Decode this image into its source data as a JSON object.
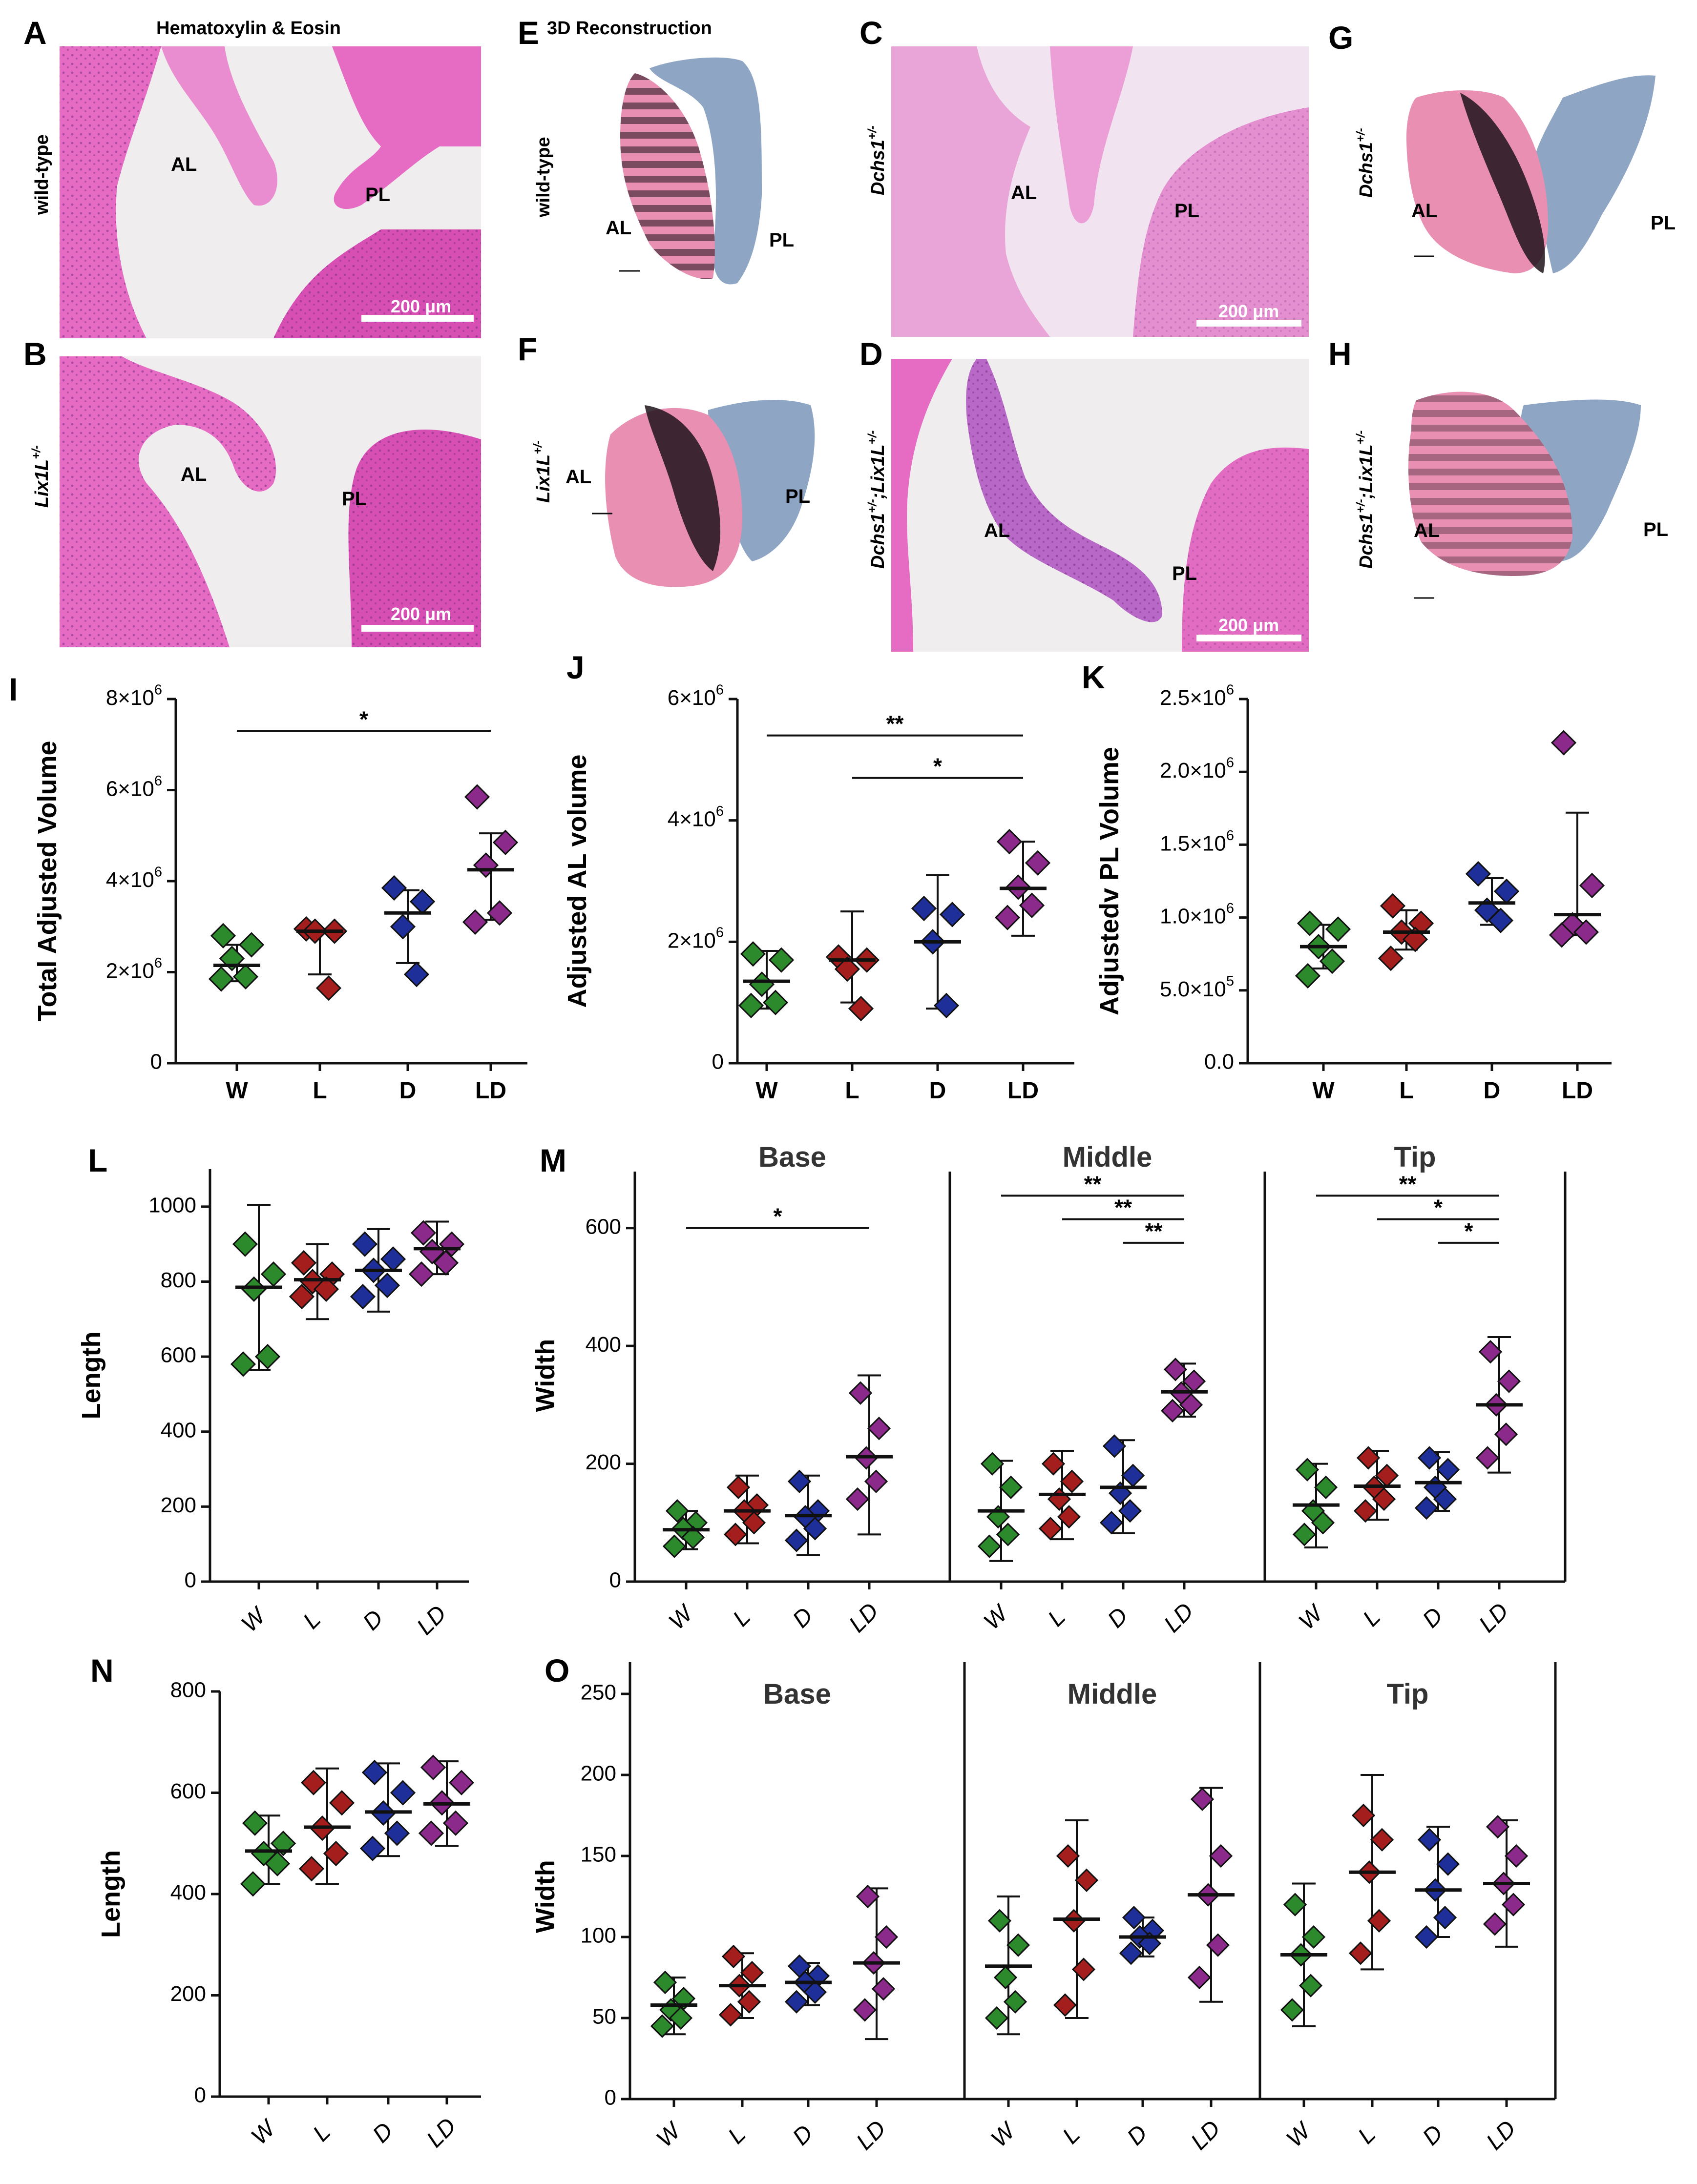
{
  "figure": {
    "panel_letters": [
      "A",
      "B",
      "C",
      "D",
      "E",
      "F",
      "G",
      "H",
      "I",
      "J",
      "K",
      "L",
      "M",
      "N",
      "O"
    ],
    "column_headers": {
      "he": "Hematoxylin & Eosin",
      "recon": "3D Reconstruction"
    },
    "genotype_labels": {
      "wt": "wild-type",
      "lix_base": "Lix1L",
      "lix_sup": "+/-",
      "dchs_base": "Dchs1",
      "dchs_sup": "+/-",
      "dl_base1": "Dchs1",
      "dl_sup1": "+/-",
      "dl_sep": ";",
      "dl_base2": "Lix1L",
      "dl_sup2": "+/-"
    },
    "leaflet_labels": {
      "anterior": "AL",
      "posterior": "PL"
    },
    "scale_bar_label": "200 μm",
    "histology_colors": {
      "background": "#efedee",
      "tissue": "#e56bc3",
      "tissue_dark": "#c43d9e",
      "nuclei": "#7a2f86"
    },
    "recon_colors": {
      "anterior": "#e88fb2",
      "anterior_shadow": "#2a1820",
      "posterior": "#8fa5c4"
    }
  },
  "chart_data": [
    {
      "panel": "I",
      "type": "scatter",
      "categories": [
        "W",
        "L",
        "D",
        "LD"
      ],
      "ylabel": "Total Adjusted Volume",
      "yticks": [
        0,
        2000000,
        4000000,
        6000000,
        8000000
      ],
      "ytick_labels": [
        "0",
        "2×10^6",
        "4×10^6",
        "6×10^6",
        "8×10^6"
      ],
      "ylim": [
        0,
        8000000
      ],
      "series": [
        {
          "name": "W",
          "color": "#2c8a2c",
          "points": [
            2800000,
            2600000,
            2300000,
            1900000,
            1850000
          ],
          "mean": 2150000,
          "err": [
            1800000,
            2600000
          ]
        },
        {
          "name": "L",
          "color": "#a51e1e",
          "points": [
            2950000,
            2900000,
            2900000,
            1650000
          ],
          "mean": 2900000,
          "err": [
            1950000,
            2950000
          ]
        },
        {
          "name": "D",
          "color": "#1f2f9a",
          "points": [
            3850000,
            3550000,
            3000000,
            1950000
          ],
          "mean": 3300000,
          "err": [
            2200000,
            3800000
          ]
        },
        {
          "name": "LD",
          "color": "#8b2a8b",
          "points": [
            5850000,
            4850000,
            4350000,
            3300000,
            3100000
          ],
          "mean": 4250000,
          "err": [
            3150000,
            5050000
          ]
        }
      ],
      "significance": [
        {
          "from": "W",
          "to": "LD",
          "label": "*",
          "level": 7300000
        }
      ]
    },
    {
      "panel": "J",
      "type": "scatter",
      "categories": [
        "W",
        "L",
        "D",
        "LD"
      ],
      "ylabel": "Adjusted AL volume",
      "yticks": [
        0,
        2000000,
        4000000,
        6000000
      ],
      "ytick_labels": [
        "0",
        "2×10^6",
        "4×10^6",
        "6×10^6"
      ],
      "ylim": [
        0,
        6000000
      ],
      "series": [
        {
          "name": "W",
          "color": "#2c8a2c",
          "points": [
            1800000,
            1700000,
            1300000,
            1000000,
            950000
          ],
          "mean": 1350000,
          "err": [
            900000,
            1850000
          ]
        },
        {
          "name": "L",
          "color": "#a51e1e",
          "points": [
            1750000,
            1700000,
            1550000,
            900000
          ],
          "mean": 1700000,
          "err": [
            1000000,
            2500000
          ]
        },
        {
          "name": "D",
          "color": "#1f2f9a",
          "points": [
            2550000,
            2450000,
            2000000,
            950000
          ],
          "mean": 2000000,
          "err": [
            900000,
            3100000
          ]
        },
        {
          "name": "LD",
          "color": "#8b2a8b",
          "points": [
            3650000,
            3300000,
            2900000,
            2600000,
            2400000
          ],
          "mean": 2880000,
          "err": [
            2100000,
            3650000
          ]
        }
      ],
      "significance": [
        {
          "from": "W",
          "to": "LD",
          "label": "**",
          "level": 5400000
        },
        {
          "from": "L",
          "to": "LD",
          "label": "*",
          "level": 4700000
        }
      ]
    },
    {
      "panel": "K",
      "type": "scatter",
      "categories": [
        "W",
        "L",
        "D",
        "LD"
      ],
      "ylabel": "Adjustedv PL Volume",
      "yticks": [
        0,
        500000,
        1000000,
        1500000,
        2000000,
        2500000
      ],
      "ytick_labels": [
        "0.0",
        "5.0×10^5",
        "1.0×10^6",
        "1.5×10^6",
        "2.0×10^6",
        "2.5×10^6"
      ],
      "ylim": [
        0,
        2500000
      ],
      "series": [
        {
          "name": "W",
          "color": "#2c8a2c",
          "points": [
            960000,
            920000,
            800000,
            700000,
            600000
          ],
          "mean": 800000,
          "err": [
            650000,
            950000
          ]
        },
        {
          "name": "L",
          "color": "#a51e1e",
          "points": [
            1080000,
            960000,
            900000,
            850000,
            720000
          ],
          "mean": 900000,
          "err": [
            780000,
            1050000
          ]
        },
        {
          "name": "D",
          "color": "#1f2f9a",
          "points": [
            1300000,
            1180000,
            1050000,
            980000
          ],
          "mean": 1100000,
          "err": [
            950000,
            1270000
          ]
        },
        {
          "name": "LD",
          "color": "#8b2a8b",
          "points": [
            2200000,
            1220000,
            950000,
            900000,
            880000
          ],
          "mean": 1020000,
          "err": [
            880000,
            1720000
          ]
        }
      ],
      "significance": []
    },
    {
      "panel": "L",
      "type": "scatter",
      "categories": [
        "W",
        "L",
        "D",
        "LD"
      ],
      "ylabel": "Length",
      "yticks": [
        0,
        200,
        400,
        600,
        800,
        1000
      ],
      "ylim": [
        0,
        1100
      ],
      "series": [
        {
          "name": "W",
          "color": "#2c8a2c",
          "points": [
            900,
            820,
            780,
            600,
            580
          ],
          "mean": 785,
          "err": [
            565,
            1005
          ]
        },
        {
          "name": "L",
          "color": "#a51e1e",
          "points": [
            850,
            820,
            800,
            780,
            760
          ],
          "mean": 805,
          "err": [
            700,
            900
          ]
        },
        {
          "name": "D",
          "color": "#1f2f9a",
          "points": [
            900,
            860,
            830,
            790,
            760
          ],
          "mean": 830,
          "err": [
            720,
            940
          ]
        },
        {
          "name": "LD",
          "color": "#8b2a8b",
          "points": [
            930,
            900,
            880,
            850,
            820
          ],
          "mean": 888,
          "err": [
            820,
            960
          ]
        }
      ],
      "significance": []
    },
    {
      "panel": "M",
      "type": "scatter",
      "facets": [
        "Base",
        "Middle",
        "Tip"
      ],
      "categories": [
        "W",
        "L",
        "D",
        "LD"
      ],
      "ylabel": "Width",
      "yticks": [
        0,
        200,
        400,
        600
      ],
      "ylim": [
        0,
        700
      ],
      "facet_series": [
        [
          {
            "name": "W",
            "color": "#2c8a2c",
            "mean": 88,
            "err": [
              55,
              120
            ],
            "points": [
              120,
              100,
              90,
              75,
              60
            ]
          },
          {
            "name": "L",
            "color": "#a51e1e",
            "mean": 120,
            "err": [
              65,
              180
            ],
            "points": [
              160,
              130,
              120,
              100,
              80
            ]
          },
          {
            "name": "D",
            "color": "#1f2f9a",
            "mean": 112,
            "err": [
              45,
              180
            ],
            "points": [
              170,
              120,
              110,
              90,
              70
            ]
          },
          {
            "name": "LD",
            "color": "#8b2a8b",
            "mean": 212,
            "err": [
              80,
              350
            ],
            "points": [
              320,
              260,
              210,
              170,
              140
            ]
          }
        ],
        [
          {
            "name": "W",
            "color": "#2c8a2c",
            "mean": 120,
            "err": [
              35,
              205
            ],
            "points": [
              200,
              160,
              110,
              80,
              60
            ]
          },
          {
            "name": "L",
            "color": "#a51e1e",
            "mean": 148,
            "err": [
              72,
              222
            ],
            "points": [
              200,
              170,
              140,
              110,
              90
            ]
          },
          {
            "name": "D",
            "color": "#1f2f9a",
            "mean": 160,
            "err": [
              82,
              240
            ],
            "points": [
              230,
              180,
              150,
              120,
              100
            ]
          },
          {
            "name": "LD",
            "color": "#8b2a8b",
            "mean": 322,
            "err": [
              280,
              370
            ],
            "points": [
              360,
              340,
              320,
              300,
              290
            ]
          }
        ],
        [
          {
            "name": "W",
            "color": "#2c8a2c",
            "mean": 130,
            "err": [
              58,
              200
            ],
            "points": [
              190,
              160,
              120,
              100,
              80
            ]
          },
          {
            "name": "L",
            "color": "#a51e1e",
            "mean": 162,
            "err": [
              105,
              222
            ],
            "points": [
              210,
              180,
              160,
              140,
              120
            ]
          },
          {
            "name": "D",
            "color": "#1f2f9a",
            "mean": 168,
            "err": [
              120,
              220
            ],
            "points": [
              210,
              190,
              160,
              140,
              125
            ]
          },
          {
            "name": "LD",
            "color": "#8b2a8b",
            "mean": 300,
            "err": [
              185,
              415
            ],
            "points": [
              390,
              340,
              300,
              250,
              210
            ]
          }
        ]
      ],
      "significance": [
        [
          {
            "from": "W",
            "to": "LD",
            "label": "*",
            "level": 600
          }
        ],
        [
          {
            "from": "W",
            "to": "LD",
            "label": "**",
            "level": 655
          },
          {
            "from": "L",
            "to": "LD",
            "label": "**",
            "level": 615
          },
          {
            "from": "D",
            "to": "LD",
            "label": "**",
            "level": 575
          }
        ],
        [
          {
            "from": "W",
            "to": "LD",
            "label": "**",
            "level": 655
          },
          {
            "from": "L",
            "to": "LD",
            "label": "*",
            "level": 615
          },
          {
            "from": "D",
            "to": "LD",
            "label": "*",
            "level": 575
          }
        ]
      ]
    },
    {
      "panel": "N",
      "type": "scatter",
      "categories": [
        "W",
        "L",
        "D",
        "LD"
      ],
      "ylabel": "Length",
      "yticks": [
        0,
        200,
        400,
        600,
        800
      ],
      "ylim": [
        0,
        800
      ],
      "series": [
        {
          "name": "W",
          "color": "#2c8a2c",
          "points": [
            540,
            500,
            480,
            460,
            420
          ],
          "mean": 485,
          "err": [
            420,
            555
          ]
        },
        {
          "name": "L",
          "color": "#a51e1e",
          "points": [
            620,
            580,
            530,
            480,
            450
          ],
          "mean": 532,
          "err": [
            420,
            648
          ]
        },
        {
          "name": "D",
          "color": "#1f2f9a",
          "points": [
            640,
            600,
            560,
            520,
            490
          ],
          "mean": 562,
          "err": [
            475,
            658
          ]
        },
        {
          "name": "LD",
          "color": "#8b2a8b",
          "points": [
            650,
            620,
            580,
            540,
            520
          ],
          "mean": 578,
          "err": [
            495,
            662
          ]
        }
      ],
      "significance": []
    },
    {
      "panel": "O",
      "type": "scatter",
      "facets": [
        "Base",
        "Middle",
        "Tip"
      ],
      "categories": [
        "W",
        "L",
        "D",
        "LD"
      ],
      "ylabel": "Width",
      "yticks": [
        0,
        50,
        100,
        150,
        200,
        250
      ],
      "ylim": [
        0,
        250
      ],
      "facet_series": [
        [
          {
            "name": "W",
            "color": "#2c8a2c",
            "mean": 58,
            "err": [
              40,
              75
            ],
            "points": [
              72,
              62,
              55,
              50,
              45
            ]
          },
          {
            "name": "L",
            "color": "#a51e1e",
            "mean": 70,
            "err": [
              50,
              90
            ],
            "points": [
              88,
              78,
              70,
              60,
              52
            ]
          },
          {
            "name": "D",
            "color": "#1f2f9a",
            "mean": 72,
            "err": [
              58,
              84
            ],
            "points": [
              82,
              76,
              72,
              66,
              60
            ]
          },
          {
            "name": "LD",
            "color": "#8b2a8b",
            "mean": 84,
            "err": [
              37,
              130
            ],
            "points": [
              125,
              100,
              84,
              68,
              55
            ]
          }
        ],
        [
          {
            "name": "W",
            "color": "#2c8a2c",
            "mean": 82,
            "err": [
              40,
              125
            ],
            "points": [
              110,
              95,
              75,
              60,
              50
            ]
          },
          {
            "name": "L",
            "color": "#a51e1e",
            "mean": 111,
            "err": [
              50,
              172
            ],
            "points": [
              150,
              135,
              110,
              80,
              58
            ]
          },
          {
            "name": "D",
            "color": "#1f2f9a",
            "mean": 100,
            "err": [
              88,
              112
            ],
            "points": [
              112,
              104,
              100,
              96,
              90
            ]
          },
          {
            "name": "LD",
            "color": "#8b2a8b",
            "mean": 126,
            "err": [
              60,
              192
            ],
            "points": [
              185,
              150,
              126,
              95,
              75
            ]
          }
        ],
        [
          {
            "name": "W",
            "color": "#2c8a2c",
            "mean": 89,
            "err": [
              45,
              133
            ],
            "points": [
              120,
              100,
              89,
              70,
              55
            ]
          },
          {
            "name": "L",
            "color": "#a51e1e",
            "mean": 140,
            "err": [
              80,
              200
            ],
            "points": [
              175,
              160,
              140,
              110,
              90
            ]
          },
          {
            "name": "D",
            "color": "#1f2f9a",
            "mean": 129,
            "err": [
              100,
              168
            ],
            "points": [
              160,
              145,
              129,
              112,
              100
            ]
          },
          {
            "name": "LD",
            "color": "#8b2a8b",
            "mean": 133,
            "err": [
              94,
              172
            ],
            "points": [
              168,
              150,
              133,
              120,
              108
            ]
          }
        ]
      ],
      "significance": [
        [],
        [],
        []
      ]
    }
  ]
}
